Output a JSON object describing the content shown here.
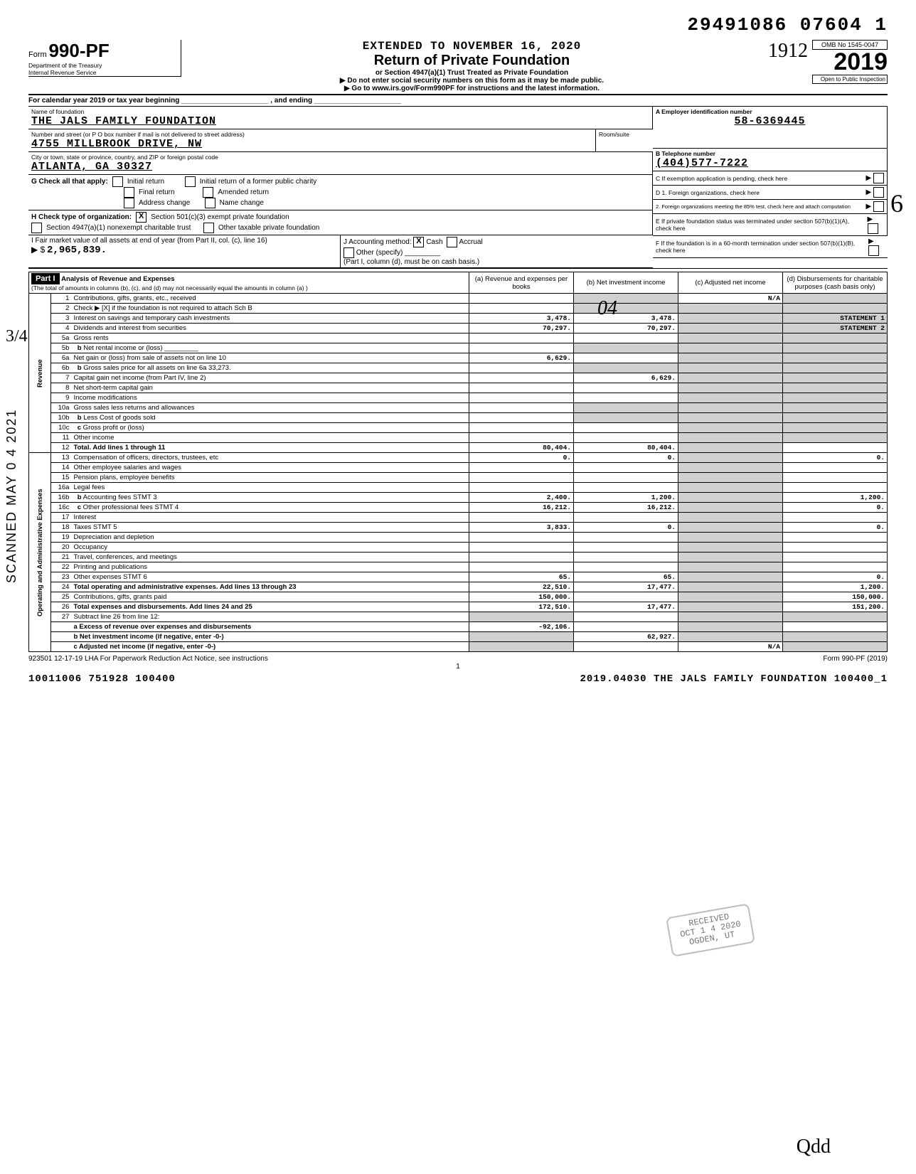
{
  "dln": "29491086 07604  1",
  "extended_to": "EXTENDED TO NOVEMBER 16, 2020",
  "form_number": "990-PF",
  "form_label": "Form",
  "dept": "Department of the Treasury",
  "irs": "Internal Revenue Service",
  "title": "Return of Private Foundation",
  "subtitle1": "or Section 4947(a)(1) Trust Treated as Private Foundation",
  "subtitle2": "▶ Do not enter social security numbers on this form as it may be made public.",
  "subtitle3": "▶ Go to www.irs.gov/Form990PF for instructions and the latest information.",
  "omb": "OMB No  1545-0047",
  "tax_year": "2019",
  "hand_year": "1912",
  "open_insp": "Open to Public Inspection",
  "cal_year_line": "For calendar year 2019 or tax year beginning ______________________ , and ending ______________________",
  "name_lbl": "Name of foundation",
  "name": "THE JALS FAMILY FOUNDATION",
  "addr_lbl": "Number and street (or P O  box number if mail is not delivered to street address)",
  "room_lbl": "Room/suite",
  "addr": "4755 MILLBROOK DRIVE, NW",
  "city_lbl": "City or town, state or province, country, and ZIP or foreign postal code",
  "city": "ATLANTA, GA   30327",
  "ein_lbl": "A  Employer identification number",
  "ein": "58-6369445",
  "tel_lbl": "B  Telephone number",
  "tel": "(404)577-7222",
  "c_lbl": "C  If exemption application is pending, check here",
  "g_lbl": "G  Check all that apply:",
  "g_opts": [
    "Initial return",
    "Final return",
    "Address change",
    "Initial return of a former public charity",
    "Amended return",
    "Name change"
  ],
  "d1": "D  1. Foreign organizations, check here",
  "d2": "2. Foreign organizations meeting the 85% test, check here and attach computation",
  "h_lbl": "H  Check type of organization:",
  "h_501": "Section 501(c)(3) exempt private foundation",
  "h_4947": "Section 4947(a)(1) nonexempt charitable trust",
  "h_other": "Other taxable private foundation",
  "e_lbl": "E  If private foundation status was terminated under section 507(b)(1)(A), check here",
  "i_lbl": "I   Fair market value of all assets at end of year (from Part II, col. (c), line 16)",
  "i_val": "2,965,839.",
  "j_lbl": "J   Accounting method:",
  "j_cash": "Cash",
  "j_accr": "Accrual",
  "j_other": "Other (specify) _________",
  "j_note": "(Part I, column (d), must be on cash basis.)",
  "f_lbl": "F  If the foundation is in a 60-month termination under section 507(b)(1)(B), check here",
  "part1": "Part I",
  "part1_title": "Analysis of Revenue and Expenses",
  "part1_note": "(The total of amounts in columns (b), (c), and (d) may not necessarily equal the amounts in column (a) )",
  "col_a": "(a) Revenue and expenses per books",
  "col_b": "(b) Net investment income",
  "col_c": "(c) Adjusted net income",
  "col_d": "(d) Disbursements for charitable purposes (cash basis only)",
  "na": "N/A",
  "rows": {
    "1": {
      "d": "Contributions, gifts, grants, etc., received"
    },
    "2": {
      "d": "Check ▶ [X] if the foundation is not required to attach Sch  B"
    },
    "3": {
      "d": "Interest on savings and temporary cash investments",
      "a": "3,478.",
      "b": "3,478.",
      "dd": "STATEMENT  1"
    },
    "4": {
      "d": "Dividends and interest from securities",
      "a": "70,297.",
      "b": "70,297.",
      "dd": "STATEMENT  2"
    },
    "5a": {
      "d": "Gross rents"
    },
    "5b": {
      "d": "Net rental income or (loss) _________"
    },
    "6a": {
      "d": "Net gain or (loss) from sale of assets not on line 10",
      "a": "6,629."
    },
    "6b": {
      "d": "Gross sales price for all assets on line 6a      33,273."
    },
    "7": {
      "d": "Capital gain net income (from Part IV, line 2)",
      "b": "6,629."
    },
    "8": {
      "d": "Net short-term capital gain"
    },
    "9": {
      "d": "Income modifications"
    },
    "10a": {
      "d": "Gross sales less returns and allowances"
    },
    "10b": {
      "d": "Less  Cost of goods sold"
    },
    "10c": {
      "d": "Gross profit or (loss)"
    },
    "11": {
      "d": "Other income"
    },
    "12": {
      "d": "Total. Add lines 1 through 11",
      "a": "80,404.",
      "b": "80,404."
    },
    "13": {
      "d": "Compensation of officers, directors, trustees, etc",
      "a": "0.",
      "b": "0.",
      "dd": "0."
    },
    "14": {
      "d": "Other employee salaries and wages"
    },
    "15": {
      "d": "Pension plans, employee benefits"
    },
    "16a": {
      "d": "Legal fees"
    },
    "16b": {
      "d": "Accounting fees               STMT  3",
      "a": "2,400.",
      "b": "1,200.",
      "dd": "1,200."
    },
    "16c": {
      "d": "Other professional fees       STMT  4",
      "a": "16,212.",
      "b": "16,212.",
      "dd": "0."
    },
    "17": {
      "d": "Interest"
    },
    "18": {
      "d": "Taxes                         STMT  5",
      "a": "3,833.",
      "b": "0.",
      "dd": "0."
    },
    "19": {
      "d": "Depreciation and depletion"
    },
    "20": {
      "d": "Occupancy"
    },
    "21": {
      "d": "Travel, conferences, and meetings"
    },
    "22": {
      "d": "Printing and publications"
    },
    "23": {
      "d": "Other expenses                STMT  6",
      "a": "65.",
      "b": "65.",
      "dd": "0."
    },
    "24": {
      "d": "Total operating and administrative expenses. Add lines 13 through 23",
      "a": "22,510.",
      "b": "17,477.",
      "dd": "1,200."
    },
    "25": {
      "d": "Contributions, gifts, grants paid",
      "a": "150,000.",
      "dd": "150,000."
    },
    "26": {
      "d": "Total expenses and disbursements. Add lines 24 and 25",
      "a": "172,510.",
      "b": "17,477.",
      "dd": "151,200."
    },
    "27": {
      "d": "Subtract line 26 from line 12:"
    },
    "27a": {
      "d": "Excess of revenue over expenses and disbursements",
      "a": "-92,106."
    },
    "27b": {
      "d": "Net investment income (if negative, enter -0-)",
      "b": "62,927."
    },
    "27c": {
      "d": "Adjusted net income (if negative, enter -0-)",
      "c": "N/A"
    }
  },
  "lha": "923501  12-17-19   LHA  For Paperwork Reduction Act Notice, see instructions",
  "form_foot": "Form 990-PF (2019)",
  "page_no": "1",
  "footer_left": "10011006 751928 100400",
  "footer_right": "2019.04030 THE JALS FAMILY FOUNDATION   100400_1",
  "side_text": "SCANNED  MAY 0 4  2021",
  "stamp": {
    "l1": "RECEIVED",
    "l2": "OCT 1 4 2020",
    "l3": "OGDEN, UT"
  },
  "hand34": "3/4",
  "hand6": "6",
  "hand04": "04",
  "sig": "Qdd",
  "revenue_lbl": "Revenue",
  "expenses_lbl": "Operating and Administrative Expenses"
}
